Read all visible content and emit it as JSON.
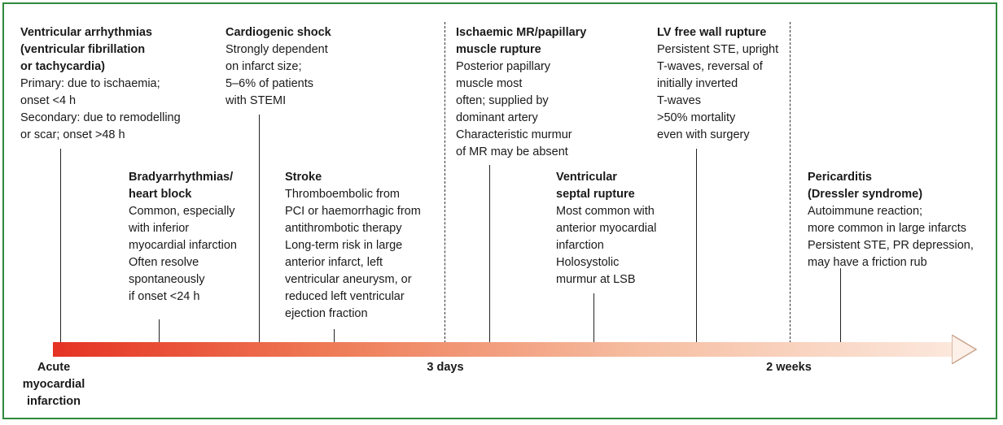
{
  "colors": {
    "frame_border": "#2f8a3c",
    "arrow_start": "#e53223",
    "arrow_end": "#fce9de",
    "arrow_outline": "#c9a58f"
  },
  "events": [
    {
      "id": "ventricular-arrhythmias",
      "title": "Ventricular arrhythmias\n(ventricular fibrillation\nor tachycardia)",
      "lines": [
        "Primary: due to ischaemia;",
        "onset <4 h",
        "Secondary: due to remodelling",
        "or scar; onset >48 h"
      ]
    },
    {
      "id": "bradyarrhythmias",
      "title": "Bradyarrhythmias/\nheart block",
      "lines": [
        "Common, especially",
        "with inferior",
        "myocardial infarction",
        "Often resolve",
        "spontaneously",
        "if onset <24 h"
      ]
    },
    {
      "id": "cardiogenic-shock",
      "title": "Cardiogenic shock",
      "lines": [
        "Strongly dependent",
        "on infarct size;",
        "5–6% of patients",
        "with STEMI"
      ]
    },
    {
      "id": "stroke",
      "title": "Stroke",
      "lines": [
        "Thromboembolic from",
        "PCI or haemorrhagic from",
        "antithrombotic therapy",
        "Long-term risk in large",
        "anterior infarct, left",
        "ventricular aneurysm, or",
        "reduced left ventricular",
        "ejection fraction"
      ]
    },
    {
      "id": "ischaemic-mr",
      "title": "Ischaemic MR/papillary\nmuscle rupture",
      "lines": [
        "Posterior papillary",
        "muscle most",
        "often; supplied by",
        "dominant artery",
        "Characteristic murmur",
        "of MR may be absent"
      ]
    },
    {
      "id": "septal-rupture",
      "title": "Ventricular\nseptal rupture",
      "lines": [
        "Most common with",
        "anterior myocardial",
        "infarction",
        "Holosystolic",
        "murmur at LSB"
      ]
    },
    {
      "id": "lv-free-wall-rupture",
      "title": "LV free wall rupture",
      "lines": [
        "Persistent STE, upright",
        "T-waves, reversal of",
        "initially inverted",
        "T-waves",
        ">50% mortality",
        "even with surgery"
      ]
    },
    {
      "id": "pericarditis",
      "title": "Pericarditis\n(Dressler syndrome)",
      "lines": [
        "Autoimmune reaction;",
        "more common in large infarcts",
        "Persistent STE, PR depression,",
        "may have a friction rub"
      ]
    }
  ],
  "axis": {
    "start_label": "Acute\nmyocardial\ninfarction",
    "mark_3days": "3 days",
    "mark_2weeks": "2 weeks"
  }
}
